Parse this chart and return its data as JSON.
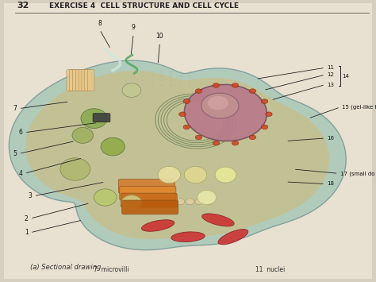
{
  "page_number": "32",
  "header": "EXERCISE 4  CELL STRUCTURE AND CELL CYCLE",
  "caption": "(a) Sectional drawing",
  "bottom_label_left": "7  microvilli",
  "bottom_label_right": "11  nuclei",
  "bg_color": "#e8e0d0",
  "page_bg": "#d6cfc0",
  "header_color": "#222222",
  "label_color": "#111111",
  "figsize": [
    4.74,
    3.55
  ],
  "dpi": 100
}
